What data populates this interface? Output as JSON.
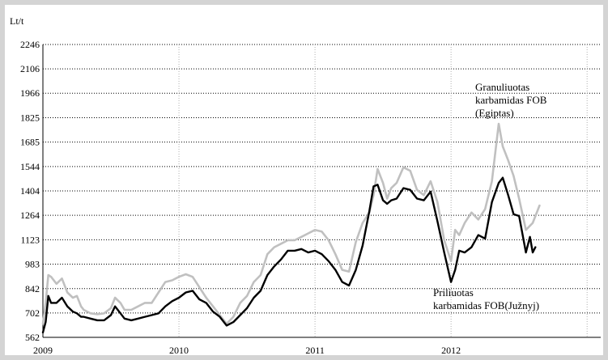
{
  "chart_data": {
    "type": "line",
    "title": "",
    "ylabel": "Lt/t",
    "xlabel": "",
    "x_ticks": [
      "2009",
      "2010",
      "2011",
      "2012"
    ],
    "y_ticks": [
      562,
      702,
      842,
      983,
      1123,
      1264,
      1404,
      1544,
      1685,
      1825,
      1966,
      2106,
      2246
    ],
    "ylim": [
      562,
      2246
    ],
    "xlim": [
      2009.0,
      2013.1
    ],
    "grid": true,
    "series": [
      {
        "name": "Granuliuotas karbamidas FOB (Egiptas)",
        "color": "#c0c0c0",
        "x": [
          2009.0,
          2009.02,
          2009.04,
          2009.06,
          2009.1,
          2009.14,
          2009.18,
          2009.22,
          2009.25,
          2009.28,
          2009.3,
          2009.35,
          2009.4,
          2009.45,
          2009.5,
          2009.53,
          2009.57,
          2009.6,
          2009.65,
          2009.7,
          2009.75,
          2009.8,
          2009.85,
          2009.9,
          2009.95,
          2010.0,
          2010.05,
          2010.1,
          2010.15,
          2010.2,
          2010.25,
          2010.3,
          2010.35,
          2010.4,
          2010.45,
          2010.5,
          2010.55,
          2010.6,
          2010.65,
          2010.7,
          2010.75,
          2010.8,
          2010.85,
          2010.9,
          2010.95,
          2011.0,
          2011.05,
          2011.1,
          2011.15,
          2011.2,
          2011.25,
          2011.3,
          2011.35,
          2011.4,
          2011.43,
          2011.46,
          2011.5,
          2011.53,
          2011.56,
          2011.6,
          2011.65,
          2011.7,
          2011.75,
          2011.8,
          2011.85,
          2011.9,
          2011.95,
          2012.0,
          2012.03,
          2012.06,
          2012.1,
          2012.15,
          2012.2,
          2012.25,
          2012.3,
          2012.35,
          2012.38,
          2012.42,
          2012.46,
          2012.5,
          2012.55,
          2012.6,
          2012.65
        ],
        "values": [
          640,
          760,
          920,
          910,
          870,
          900,
          820,
          790,
          800,
          740,
          720,
          700,
          695,
          700,
          730,
          790,
          760,
          720,
          720,
          740,
          760,
          760,
          820,
          880,
          890,
          910,
          925,
          910,
          850,
          790,
          740,
          690,
          640,
          680,
          760,
          800,
          880,
          920,
          1040,
          1080,
          1100,
          1120,
          1120,
          1140,
          1160,
          1180,
          1170,
          1120,
          1040,
          950,
          940,
          1110,
          1220,
          1280,
          1380,
          1530,
          1450,
          1360,
          1420,
          1450,
          1540,
          1520,
          1410,
          1380,
          1460,
          1340,
          1120,
          1000,
          1180,
          1150,
          1220,
          1280,
          1240,
          1300,
          1460,
          1790,
          1660,
          1580,
          1490,
          1360,
          1180,
          1220,
          1320
        ]
      },
      {
        "name": "Priliuotas karbamidas FOB(Južnyj)",
        "color": "#000000",
        "x": [
          2009.0,
          2009.02,
          2009.04,
          2009.06,
          2009.1,
          2009.14,
          2009.18,
          2009.22,
          2009.25,
          2009.28,
          2009.3,
          2009.35,
          2009.4,
          2009.45,
          2009.5,
          2009.53,
          2009.57,
          2009.6,
          2009.65,
          2009.7,
          2009.75,
          2009.8,
          2009.85,
          2009.9,
          2009.95,
          2010.0,
          2010.05,
          2010.1,
          2010.15,
          2010.2,
          2010.25,
          2010.3,
          2010.35,
          2010.4,
          2010.45,
          2010.5,
          2010.55,
          2010.6,
          2010.65,
          2010.7,
          2010.75,
          2010.8,
          2010.85,
          2010.9,
          2010.95,
          2011.0,
          2011.05,
          2011.1,
          2011.15,
          2011.2,
          2011.25,
          2011.3,
          2011.35,
          2011.4,
          2011.43,
          2011.46,
          2011.5,
          2011.53,
          2011.56,
          2011.6,
          2011.65,
          2011.7,
          2011.75,
          2011.8,
          2011.85,
          2011.9,
          2011.95,
          2012.0,
          2012.03,
          2012.06,
          2012.1,
          2012.15,
          2012.2,
          2012.25,
          2012.3,
          2012.35,
          2012.38,
          2012.42,
          2012.46,
          2012.5,
          2012.55,
          2012.58,
          2012.6,
          2012.62
        ],
        "values": [
          590,
          650,
          800,
          760,
          760,
          790,
          740,
          710,
          700,
          680,
          680,
          670,
          660,
          660,
          690,
          740,
          700,
          670,
          660,
          670,
          680,
          690,
          700,
          740,
          770,
          790,
          820,
          830,
          780,
          760,
          710,
          680,
          630,
          650,
          690,
          730,
          790,
          830,
          920,
          970,
          1010,
          1060,
          1060,
          1070,
          1050,
          1060,
          1040,
          1000,
          950,
          880,
          860,
          950,
          1090,
          1290,
          1430,
          1440,
          1350,
          1330,
          1350,
          1360,
          1420,
          1410,
          1360,
          1350,
          1400,
          1230,
          1050,
          880,
          950,
          1060,
          1050,
          1080,
          1150,
          1130,
          1340,
          1450,
          1480,
          1380,
          1270,
          1260,
          1050,
          1140,
          1050,
          1080
        ]
      }
    ],
    "annotations": [
      [
        "Granuliuotas",
        "karbamidas FOB",
        "(Egiptas)"
      ],
      [
        "Priliuotas",
        "karbamidas FOB(Južnyj)"
      ]
    ]
  }
}
